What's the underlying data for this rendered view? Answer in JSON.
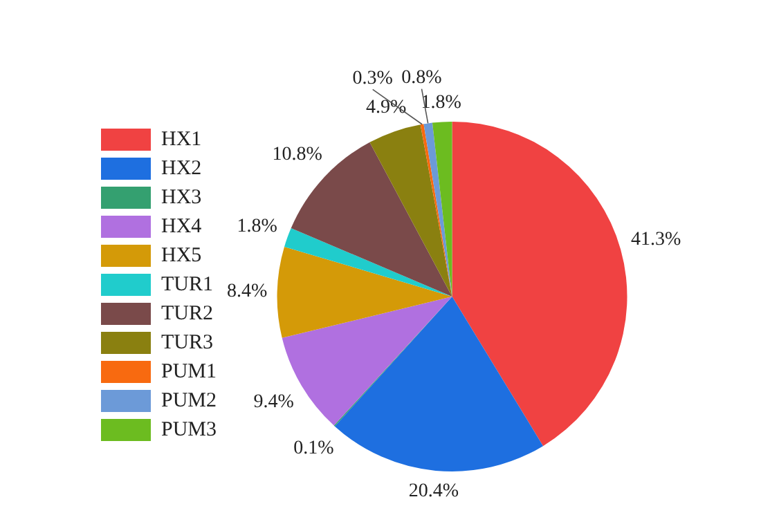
{
  "chart_data": {
    "type": "pie",
    "categories": [
      "HX1",
      "HX2",
      "HX3",
      "HX4",
      "HX5",
      "TUR1",
      "TUR2",
      "TUR3",
      "PUM1",
      "PUM2",
      "PUM3"
    ],
    "values": [
      41.3,
      20.4,
      0.1,
      9.4,
      8.4,
      1.8,
      10.8,
      4.9,
      0.3,
      0.8,
      1.8
    ],
    "colors": [
      "#f04242",
      "#1e6fe0",
      "#34a070",
      "#b070e0",
      "#d49a08",
      "#20cccc",
      "#7a4a4a",
      "#8a8010",
      "#f86a10",
      "#6c9ad8",
      "#6cbc20"
    ],
    "value_labels": [
      "41.3%",
      "20.4%",
      "0.1%",
      "9.4%",
      "8.4%",
      "1.8%",
      "10.8%",
      "4.9%",
      "0.3%",
      "0.8%",
      "1.8%"
    ],
    "legend": "left"
  }
}
